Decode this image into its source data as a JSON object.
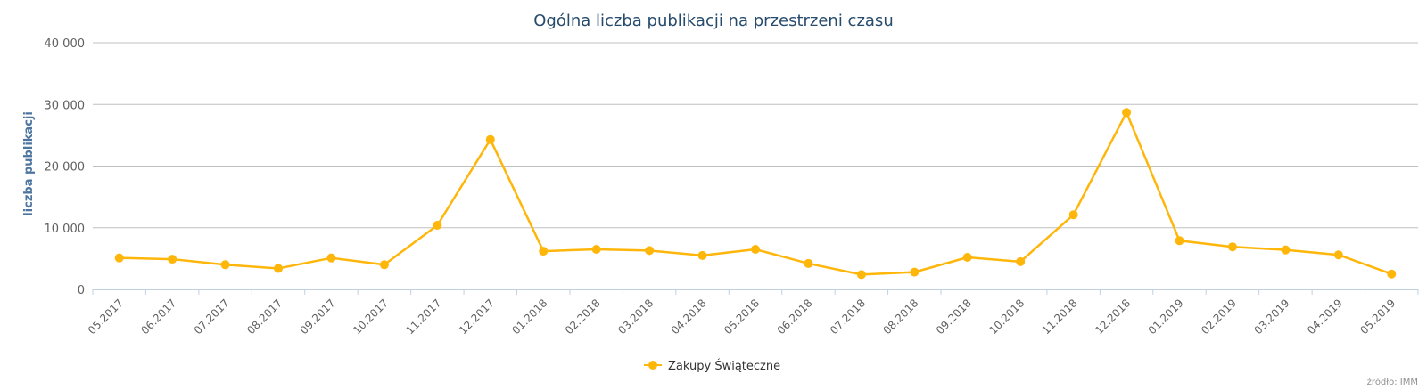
{
  "chart_data": {
    "type": "line",
    "title": "Ogólna liczba publikacji na przestrzeni czasu",
    "ylabel": "liczba publikacji",
    "ylim": [
      0,
      40000
    ],
    "yticks": [
      0,
      10000,
      20000,
      30000,
      40000
    ],
    "ytick_labels": [
      "0",
      "10 000",
      "20 000",
      "30 000",
      "40 000"
    ],
    "grid": true,
    "legend_position": "bottom-center",
    "categories": [
      "05.2017",
      "06.2017",
      "07.2017",
      "08.2017",
      "09.2017",
      "10.2017",
      "11.2017",
      "12.2017",
      "01.2018",
      "02.2018",
      "03.2018",
      "04.2018",
      "05.2018",
      "06.2018",
      "07.2018",
      "08.2018",
      "09.2018",
      "10.2018",
      "11.2018",
      "12.2018",
      "01.2019",
      "02.2019",
      "03.2019",
      "04.2019",
      "05.2019"
    ],
    "series": [
      {
        "name": "Zakupy Świąteczne",
        "color": "#ffb60a",
        "values": [
          5100,
          4900,
          4000,
          3400,
          5100,
          4000,
          10400,
          24300,
          6200,
          6500,
          6300,
          5500,
          6500,
          4200,
          2400,
          2800,
          5200,
          4500,
          12100,
          28700,
          7900,
          6900,
          6400,
          5600,
          2500
        ]
      }
    ],
    "credits": "źródło: IMM"
  }
}
